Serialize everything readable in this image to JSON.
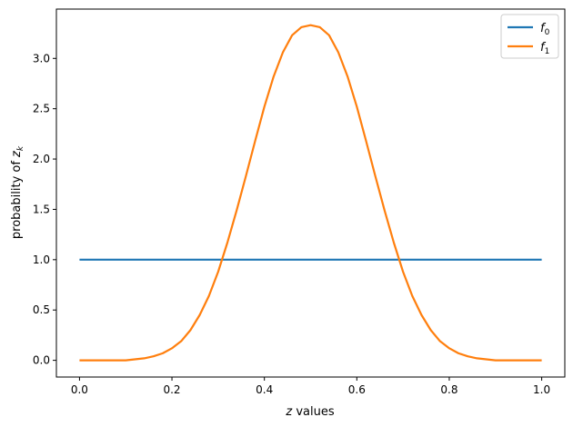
{
  "chart_data": {
    "type": "line",
    "xlabel_italic": "z",
    "xlabel_rest": " values",
    "ylabel_prefix": "probability of ",
    "ylabel_var": "z",
    "ylabel_sub": "k",
    "xlim": [
      -0.05,
      1.05
    ],
    "ylim": [
      -0.166,
      3.49
    ],
    "xticks": [
      0.0,
      0.2,
      0.4,
      0.6,
      0.8,
      1.0
    ],
    "xtick_labels": [
      "0.0",
      "0.2",
      "0.4",
      "0.6",
      "0.8",
      "1.0"
    ],
    "yticks": [
      0.0,
      0.5,
      1.0,
      1.5,
      2.0,
      2.5,
      3.0
    ],
    "ytick_labels": [
      "0.0",
      "0.5",
      "1.0",
      "1.5",
      "2.0",
      "2.5",
      "3.0"
    ],
    "grid": false,
    "legend_position": "top-right",
    "series": [
      {
        "name_base": "f",
        "name_sub": "0",
        "color": "#1f77b4",
        "x": [
          0.0,
          1.0
        ],
        "y": [
          1.0,
          1.0
        ]
      },
      {
        "name_base": "f",
        "name_sub": "1",
        "color": "#ff7f0e",
        "x": [
          0.0,
          0.02,
          0.04,
          0.06,
          0.08,
          0.1,
          0.12,
          0.14,
          0.16,
          0.18,
          0.2,
          0.22,
          0.24,
          0.26,
          0.28,
          0.3,
          0.32,
          0.34,
          0.36,
          0.38,
          0.4,
          0.42,
          0.44,
          0.46,
          0.48,
          0.5,
          0.52,
          0.54,
          0.56,
          0.58,
          0.6,
          0.62,
          0.64,
          0.66,
          0.68,
          0.7,
          0.72,
          0.74,
          0.76,
          0.78,
          0.8,
          0.82,
          0.84,
          0.86,
          0.88,
          0.9,
          0.92,
          0.94,
          0.96,
          0.98,
          1.0
        ],
        "y": [
          0.0,
          0.0,
          0.0,
          0.0,
          0.0,
          0.0,
          0.01,
          0.02,
          0.04,
          0.07,
          0.12,
          0.19,
          0.3,
          0.45,
          0.64,
          0.88,
          1.17,
          1.49,
          1.83,
          2.18,
          2.52,
          2.82,
          3.06,
          3.23,
          3.31,
          3.33,
          3.31,
          3.23,
          3.06,
          2.82,
          2.52,
          2.18,
          1.83,
          1.49,
          1.17,
          0.88,
          0.64,
          0.45,
          0.3,
          0.19,
          0.12,
          0.07,
          0.04,
          0.02,
          0.01,
          0.0,
          0.0,
          0.0,
          0.0,
          0.0,
          0.0
        ]
      }
    ]
  }
}
